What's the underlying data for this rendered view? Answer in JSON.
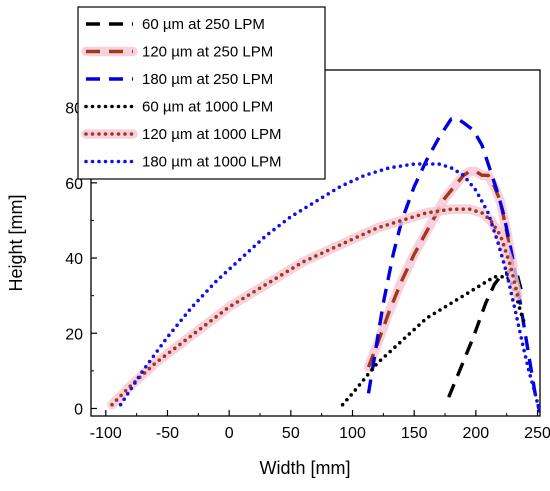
{
  "chart_data": {
    "type": "line",
    "xlabel": "Width [mm]",
    "ylabel": "Height [mm]",
    "xlim": [
      -112,
      252
    ],
    "ylim": [
      -2,
      90
    ],
    "xticks": [
      -100,
      -50,
      0,
      50,
      100,
      150,
      200,
      250
    ],
    "yticks": [
      0,
      20,
      40,
      60,
      80
    ],
    "grid": false,
    "legend_position": "top-left",
    "series": [
      {
        "name": "60 µm at 250 LPM",
        "color": "#000000",
        "style": "dashed",
        "x": [
          178,
          188,
          198,
          208,
          215,
          222,
          226,
          230,
          234,
          238
        ],
        "y": [
          3,
          11,
          19,
          28,
          33,
          36,
          36,
          38,
          35,
          30
        ]
      },
      {
        "name": "120 µm at 250 LPM",
        "color": "#a0391a",
        "style": "dashed",
        "x": [
          113,
          120,
          130,
          140,
          150,
          160,
          170,
          175,
          180,
          185,
          190,
          195,
          200,
          205,
          210,
          215,
          220,
          225,
          230
        ],
        "y": [
          11,
          17,
          26,
          34,
          41,
          47,
          53,
          56,
          58,
          60,
          62,
          63,
          63,
          62,
          62,
          59,
          55,
          47,
          38
        ]
      },
      {
        "name": "180 µm at 250 LPM",
        "color": "#0000e0",
        "style": "dashed",
        "x": [
          113,
          118,
          125,
          133,
          140,
          150,
          160,
          170,
          180,
          185,
          190,
          198,
          205,
          212,
          218,
          223,
          228,
          232,
          236,
          240,
          244,
          248,
          252
        ],
        "y": [
          4,
          14,
          28,
          41,
          50,
          59,
          66,
          72,
          77,
          77,
          76,
          74,
          70,
          63,
          57,
          51,
          43,
          36,
          28,
          20,
          12,
          4,
          -1
        ]
      },
      {
        "name": "60 µm at 1000 LPM",
        "color": "#000000",
        "style": "dotted",
        "x": [
          92,
          100,
          110,
          120,
          130,
          140,
          150,
          160,
          170,
          180,
          190,
          200,
          210,
          215,
          220,
          225,
          228,
          232,
          236,
          240
        ],
        "y": [
          1,
          4,
          8,
          12,
          15,
          18,
          21,
          24,
          26,
          28,
          30,
          32,
          34,
          35,
          35,
          35,
          34,
          31,
          26,
          22
        ]
      },
      {
        "name": "120 µm at 1000 LPM",
        "color": "#a0391a",
        "style": "dotted",
        "x": [
          -95,
          -80,
          -60,
          -40,
          -20,
          0,
          20,
          40,
          60,
          80,
          100,
          120,
          140,
          160,
          180,
          195,
          205,
          212,
          220,
          228,
          234
        ],
        "y": [
          1,
          6,
          12,
          17,
          22,
          27,
          31,
          35,
          39,
          42,
          45,
          48,
          50,
          52,
          53,
          53,
          52,
          50,
          46,
          38,
          30
        ]
      },
      {
        "name": "180 µm at 1000 LPM",
        "color": "#1010ee",
        "style": "dotted",
        "x": [
          -88,
          -70,
          -50,
          -30,
          -10,
          10,
          30,
          50,
          70,
          90,
          110,
          130,
          150,
          160,
          170,
          180,
          190,
          200,
          210,
          218,
          225,
          232,
          238,
          243,
          248,
          251
        ],
        "y": [
          1,
          10,
          19,
          27,
          34,
          40,
          46,
          51,
          55,
          59,
          62,
          64,
          65,
          65,
          65,
          64,
          62,
          58,
          52,
          44,
          36,
          26,
          17,
          10,
          4,
          0
        ]
      }
    ]
  }
}
